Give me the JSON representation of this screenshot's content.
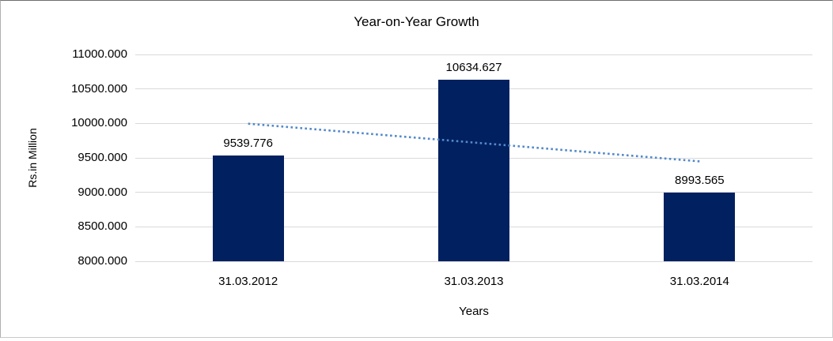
{
  "chart_data": {
    "type": "bar",
    "title": "Year-on-Year Growth",
    "xlabel": "Years",
    "ylabel": "Rs.in Million",
    "categories": [
      "31.03.2012",
      "31.03.2013",
      "31.03.2014"
    ],
    "values": [
      9539.776,
      10634.627,
      8993.565
    ],
    "data_labels": [
      "9539.776",
      "10634.627",
      "8993.565"
    ],
    "ylim": [
      8000,
      11000
    ],
    "ytick_step": 500,
    "yticks": [
      "11000.000",
      "10500.000",
      "10000.000",
      "9500.000",
      "9000.000",
      "8500.000",
      "8000.000"
    ],
    "grid": true,
    "legend": false,
    "trendline": {
      "type": "linear",
      "style": "dotted",
      "start_value": 9995.8,
      "end_value": 9449.6
    },
    "colors": {
      "bar": "#002060",
      "gridline": "#d9d9d9",
      "trendline": "#5389cb",
      "text": "#000000",
      "background": "#ffffff"
    }
  }
}
